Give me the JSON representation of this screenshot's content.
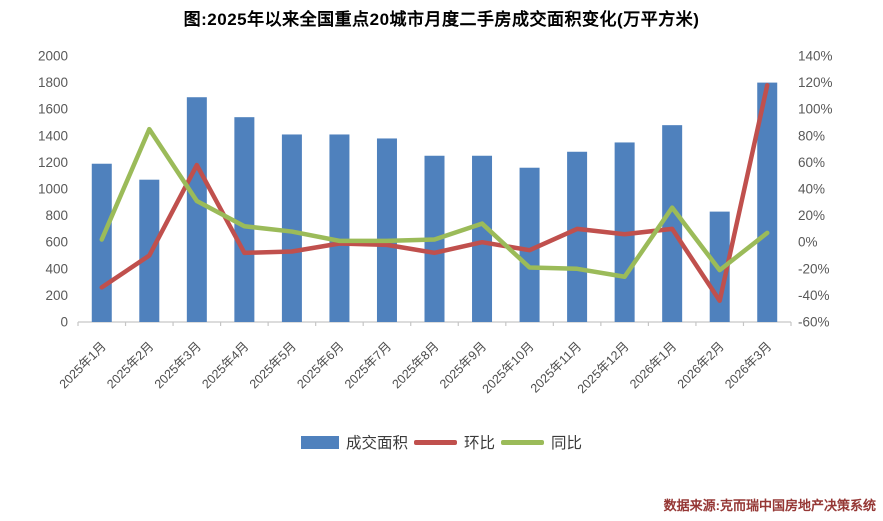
{
  "title": "图:2025年以来全国重点20城市月度二手房成交面积变化(万平方米)",
  "source": "数据来源:克而瑞中国房地产决策系统",
  "legend": [
    {
      "label": "成交面积",
      "swatch": "bar",
      "color": "#4F81BD"
    },
    {
      "label": "环比",
      "swatch": "line",
      "color": "#C0504D"
    },
    {
      "label": "同比",
      "swatch": "line",
      "color": "#9BBB59"
    }
  ],
  "chart_data": {
    "type": "bar",
    "subtype": "combo-bar-with-two-lines-dual-axis",
    "title": "图:2025年以来全国重点20城市月度二手房成交面积变化(万平方米)",
    "categories": [
      "2025年1月",
      "2025年2月",
      "2025年3月",
      "2025年4月",
      "2025年5月",
      "2025年6月",
      "2025年7月",
      "2025年8月",
      "2025年9月",
      "2025年10月",
      "2025年11月",
      "2025年12月",
      "2026年1月",
      "2026年2月",
      "2026年3月"
    ],
    "series": [
      {
        "key": "volume",
        "name": "成交面积",
        "type": "bar",
        "axis": "left",
        "color": "#4F81BD",
        "values": [
          1190,
          1070,
          1690,
          1540,
          1410,
          1410,
          1380,
          1250,
          1250,
          1160,
          1280,
          1350,
          1480,
          830,
          1800
        ]
      },
      {
        "key": "mom",
        "name": "环比",
        "type": "line",
        "axis": "right",
        "color": "#C0504D",
        "values": [
          -34,
          -10,
          58,
          -8,
          -7,
          -1,
          -2,
          -8,
          0,
          -6,
          10,
          6,
          10,
          -44,
          118
        ]
      },
      {
        "key": "yoy",
        "name": "同比",
        "type": "line",
        "axis": "right",
        "color": "#9BBB59",
        "values": [
          2,
          85,
          31,
          12,
          8,
          1,
          1,
          2,
          14,
          -19,
          -20,
          -26,
          26,
          -21,
          7
        ]
      }
    ],
    "left_axis": {
      "min": 0,
      "max": 2000,
      "step": 200,
      "tick_labels": [
        "2000",
        "1800",
        "1600",
        "1400",
        "1200",
        "1000",
        "800",
        "600",
        "400",
        "200",
        "0"
      ]
    },
    "right_axis": {
      "min": -60,
      "max": 140,
      "step": 20,
      "tick_labels": [
        "140%",
        "120%",
        "100%",
        "80%",
        "60%",
        "40%",
        "20%",
        "0%",
        "-20%",
        "-40%",
        "-60%"
      ]
    },
    "grid": false,
    "legend_position": "bottom"
  }
}
